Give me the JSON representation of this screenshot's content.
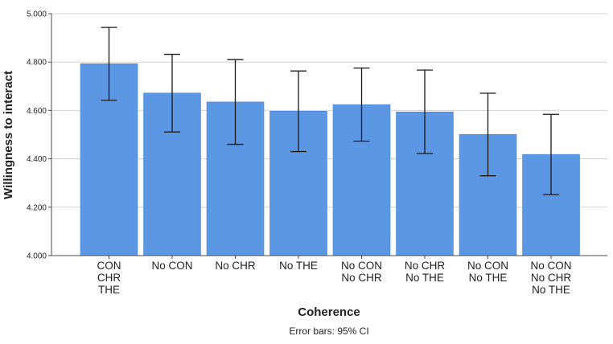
{
  "chart_data": {
    "type": "bar",
    "title": "",
    "xlabel": "Coherence",
    "ylabel": "Willingness to interact",
    "ylim": [
      4.0,
      5.0
    ],
    "yticks": [
      "4.000",
      "4.200",
      "4.400",
      "4.600",
      "4.800",
      "5.000"
    ],
    "grid": true,
    "categories": [
      [
        "CON",
        "CHR",
        "THE"
      ],
      [
        "No CON"
      ],
      [
        "No CHR"
      ],
      [
        "No THE"
      ],
      [
        "No CON",
        "No CHR"
      ],
      [
        "No CHR",
        "No THE"
      ],
      [
        "No CON",
        "No THE"
      ],
      [
        "No CON",
        "No CHR",
        "No THE"
      ]
    ],
    "values": [
      4.793,
      4.672,
      4.635,
      4.597,
      4.624,
      4.594,
      4.501,
      4.418
    ],
    "ci_lower": [
      4.642,
      4.511,
      4.46,
      4.43,
      4.473,
      4.422,
      4.33,
      4.252
    ],
    "ci_upper": [
      4.943,
      4.832,
      4.81,
      4.763,
      4.775,
      4.767,
      4.671,
      4.584
    ],
    "error_bars_note": "Error bars: 95% CI",
    "bar_color": "#5b97e3",
    "bar_edge_color": "#4a86d4",
    "grid_color": "#d3d3d3",
    "axis_color": "#4d4d4d"
  }
}
